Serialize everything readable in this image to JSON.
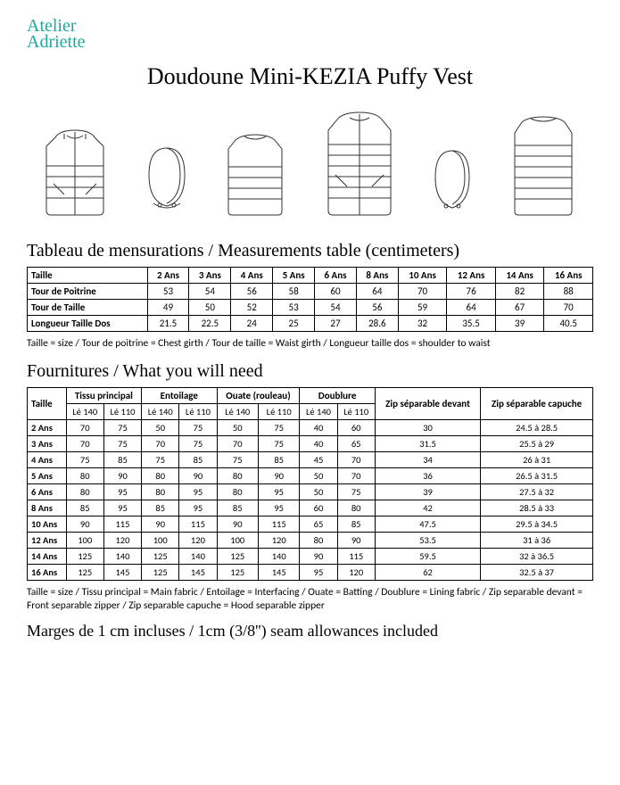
{
  "brand": {
    "line1": "Atelier",
    "line2": "Adriette",
    "color": "#1ba89e"
  },
  "title": "Doudoune Mini-KEZIA Puffy Vest",
  "section_measurements": "Tableau de mensurations / Measurements table (centimeters)",
  "meas_table": {
    "head_label": "Taille",
    "sizes": [
      "2 Ans",
      "3 Ans",
      "4 Ans",
      "5 Ans",
      "6 Ans",
      "8 Ans",
      "10 Ans",
      "12 Ans",
      "14 Ans",
      "16 Ans"
    ],
    "rows": [
      {
        "label": "Tour de Poitrine",
        "vals": [
          "53",
          "54",
          "56",
          "58",
          "60",
          "64",
          "70",
          "76",
          "82",
          "88"
        ]
      },
      {
        "label": "Tour de Taille",
        "vals": [
          "49",
          "50",
          "52",
          "53",
          "54",
          "56",
          "59",
          "64",
          "67",
          "70"
        ]
      },
      {
        "label": "Longueur Taille Dos",
        "vals": [
          "21.5",
          "22.5",
          "24",
          "25",
          "27",
          "28.6",
          "32",
          "35.5",
          "39",
          "40.5"
        ]
      }
    ]
  },
  "meas_note": "Taille = size / Tour de poitrine = Chest girth / Tour de taille = Waist girth / Longueur taille dos = shoulder to waist",
  "section_supplies": "Fournitures / What you will need",
  "supplies": {
    "head_size": "Taille",
    "groups": [
      "Tissu principal",
      "Entoilage",
      "Ouate (rouleau)",
      "Doublure",
      "Zip séparable devant",
      "Zip séparable capuche"
    ],
    "sub": [
      "Lé 140",
      "Lé 110",
      "Lé 140",
      "Lé 110",
      "Lé 140",
      "Lé 110",
      "Lé 140",
      "Lé 110"
    ],
    "rows": [
      {
        "size": "2 Ans",
        "v": [
          "70",
          "75",
          "50",
          "75",
          "50",
          "75",
          "40",
          "60",
          "30",
          "24.5 à 28.5"
        ]
      },
      {
        "size": "3 Ans",
        "v": [
          "70",
          "75",
          "70",
          "75",
          "70",
          "75",
          "40",
          "65",
          "31.5",
          "25.5 à 29"
        ]
      },
      {
        "size": "4 Ans",
        "v": [
          "75",
          "85",
          "75",
          "85",
          "75",
          "85",
          "45",
          "70",
          "34",
          "26 à 31"
        ]
      },
      {
        "size": "5 Ans",
        "v": [
          "80",
          "90",
          "80",
          "90",
          "80",
          "90",
          "50",
          "70",
          "36",
          "26.5 à 31.5"
        ]
      },
      {
        "size": "6 Ans",
        "v": [
          "80",
          "95",
          "80",
          "95",
          "80",
          "95",
          "50",
          "75",
          "39",
          "27.5 à 32"
        ]
      },
      {
        "size": "8 Ans",
        "v": [
          "85",
          "95",
          "85",
          "95",
          "85",
          "95",
          "60",
          "80",
          "42",
          "28.5 à 33"
        ]
      },
      {
        "size": "10 Ans",
        "v": [
          "90",
          "115",
          "90",
          "115",
          "90",
          "115",
          "65",
          "85",
          "47.5",
          "29.5 à 34.5"
        ]
      },
      {
        "size": "12 Ans",
        "v": [
          "100",
          "120",
          "100",
          "120",
          "100",
          "120",
          "80",
          "90",
          "53.5",
          "31 à 36"
        ]
      },
      {
        "size": "14 Ans",
        "v": [
          "125",
          "140",
          "125",
          "140",
          "125",
          "140",
          "90",
          "115",
          "59.5",
          "32 à 36.5"
        ]
      },
      {
        "size": "16 Ans",
        "v": [
          "125",
          "145",
          "125",
          "145",
          "125",
          "145",
          "95",
          "120",
          "62",
          "32.5 à 37"
        ]
      }
    ]
  },
  "supplies_note": "Taille = size / Tissu principal = Main fabric / Entoilage = Interfacing / Ouate = Batting / Doublure = Lining fabric / Zip separable devant = Front separable zipper / Zip separable capuche = Hood separable zipper",
  "footer": "Marges de 1 cm incluses / 1cm (3/8'') seam allowances included",
  "sketch_style": {
    "stroke": "#333333",
    "fill": "#ffffff",
    "line_w": 1
  }
}
